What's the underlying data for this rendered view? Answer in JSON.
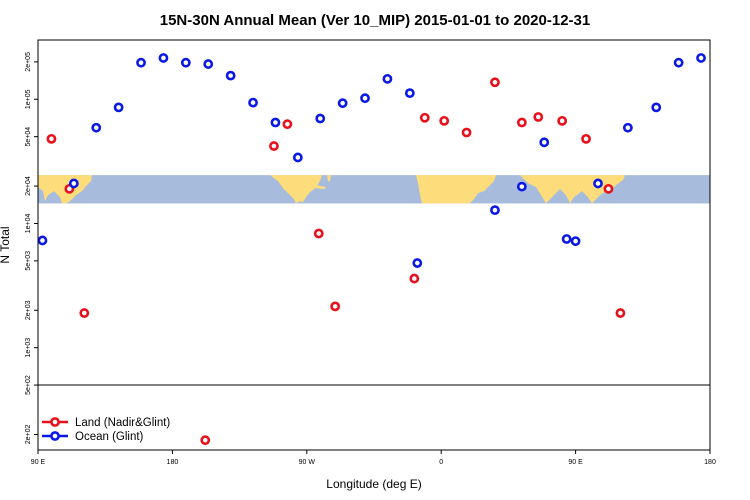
{
  "chart_data": {
    "type": "scatter",
    "title": "15N-30N Annual Mean (Ver 10_MIP)   2015-01-01 to 2020-12-31",
    "xlabel": "Longitude (deg E)",
    "ylabel": "N Total",
    "yscale": "log",
    "xlim": [
      90,
      540
    ],
    "ylim": [
      150,
      300000
    ],
    "x_ticks": [
      {
        "value": 90,
        "label": "90 E"
      },
      {
        "value": 180,
        "label": "180"
      },
      {
        "value": 270,
        "label": "90 W"
      },
      {
        "value": 360,
        "label": "0"
      },
      {
        "value": 450,
        "label": "90 E"
      },
      {
        "value": 540,
        "label": "180"
      }
    ],
    "y_ticks": [
      {
        "value": 200,
        "label": "2e+02"
      },
      {
        "value": 500,
        "label": "5e+02"
      },
      {
        "value": 1000,
        "label": "1e+03"
      },
      {
        "value": 2000,
        "label": "2e+03"
      },
      {
        "value": 5000,
        "label": "5e+03"
      },
      {
        "value": 10000,
        "label": "1e+04"
      },
      {
        "value": 20000,
        "label": "2e+04"
      },
      {
        "value": 50000,
        "label": "5e+04"
      },
      {
        "value": 100000,
        "label": "1e+05"
      },
      {
        "value": 200000,
        "label": "2e+05"
      }
    ],
    "map_strip": {
      "ymin": 14500,
      "ymax": 24500,
      "ocean_color": "#a7bcdd",
      "land_color": "#fddc7b"
    },
    "separator_y": 500,
    "legend": {
      "position": "bottom-left"
    },
    "series": [
      {
        "name": "Land (Nadir&Glint)",
        "color": "#e8111b",
        "points": [
          [
            99,
            48000
          ],
          [
            111,
            19000
          ],
          [
            121,
            1900
          ],
          [
            202,
            180
          ],
          [
            248,
            42000
          ],
          [
            257,
            63000
          ],
          [
            278,
            8300
          ],
          [
            289,
            2150
          ],
          [
            342,
            3600
          ],
          [
            349,
            71000
          ],
          [
            362,
            67000
          ],
          [
            377,
            54000
          ],
          [
            396,
            137000
          ],
          [
            414,
            65000
          ],
          [
            425,
            72000
          ],
          [
            441,
            67000
          ],
          [
            457,
            48000
          ],
          [
            472,
            19000
          ],
          [
            480,
            1900
          ]
        ]
      },
      {
        "name": "Ocean (Glint)",
        "color": "#0a19e6",
        "points": [
          [
            93,
            7300
          ],
          [
            114,
            21000
          ],
          [
            129,
            59000
          ],
          [
            144,
            86000
          ],
          [
            159,
            197000
          ],
          [
            174,
            215000
          ],
          [
            189,
            197000
          ],
          [
            204,
            192000
          ],
          [
            219,
            155000
          ],
          [
            234,
            94000
          ],
          [
            249,
            65000
          ],
          [
            264,
            34000
          ],
          [
            279,
            70000
          ],
          [
            294,
            93000
          ],
          [
            309,
            102000
          ],
          [
            324,
            146000
          ],
          [
            339,
            112000
          ],
          [
            344,
            4800
          ],
          [
            396,
            12800
          ],
          [
            414,
            19800
          ],
          [
            429,
            45000
          ],
          [
            444,
            7500
          ],
          [
            450,
            7200
          ],
          [
            465,
            21000
          ],
          [
            485,
            59000
          ],
          [
            504,
            86000
          ],
          [
            519,
            197000
          ],
          [
            534,
            215000
          ]
        ]
      }
    ]
  }
}
